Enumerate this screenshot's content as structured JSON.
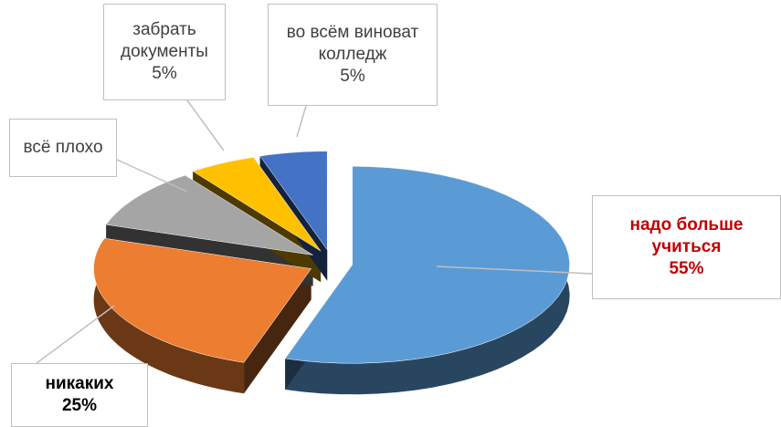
{
  "chart_data": {
    "type": "pie",
    "categories": [
      "надо больше учиться",
      "никаких",
      "всё плохо",
      "забрать документы",
      "во всём виноват колледж"
    ],
    "values": [
      55,
      25,
      10,
      5,
      5
    ],
    "value_labels": [
      "55%",
      "25%",
      null,
      "5%",
      "5%"
    ],
    "colors": [
      "#5b9bd5",
      "#ed7d31",
      "#a5a5a5",
      "#ffc000",
      "#4472c4"
    ],
    "three_d": true,
    "exploded": true
  }
}
